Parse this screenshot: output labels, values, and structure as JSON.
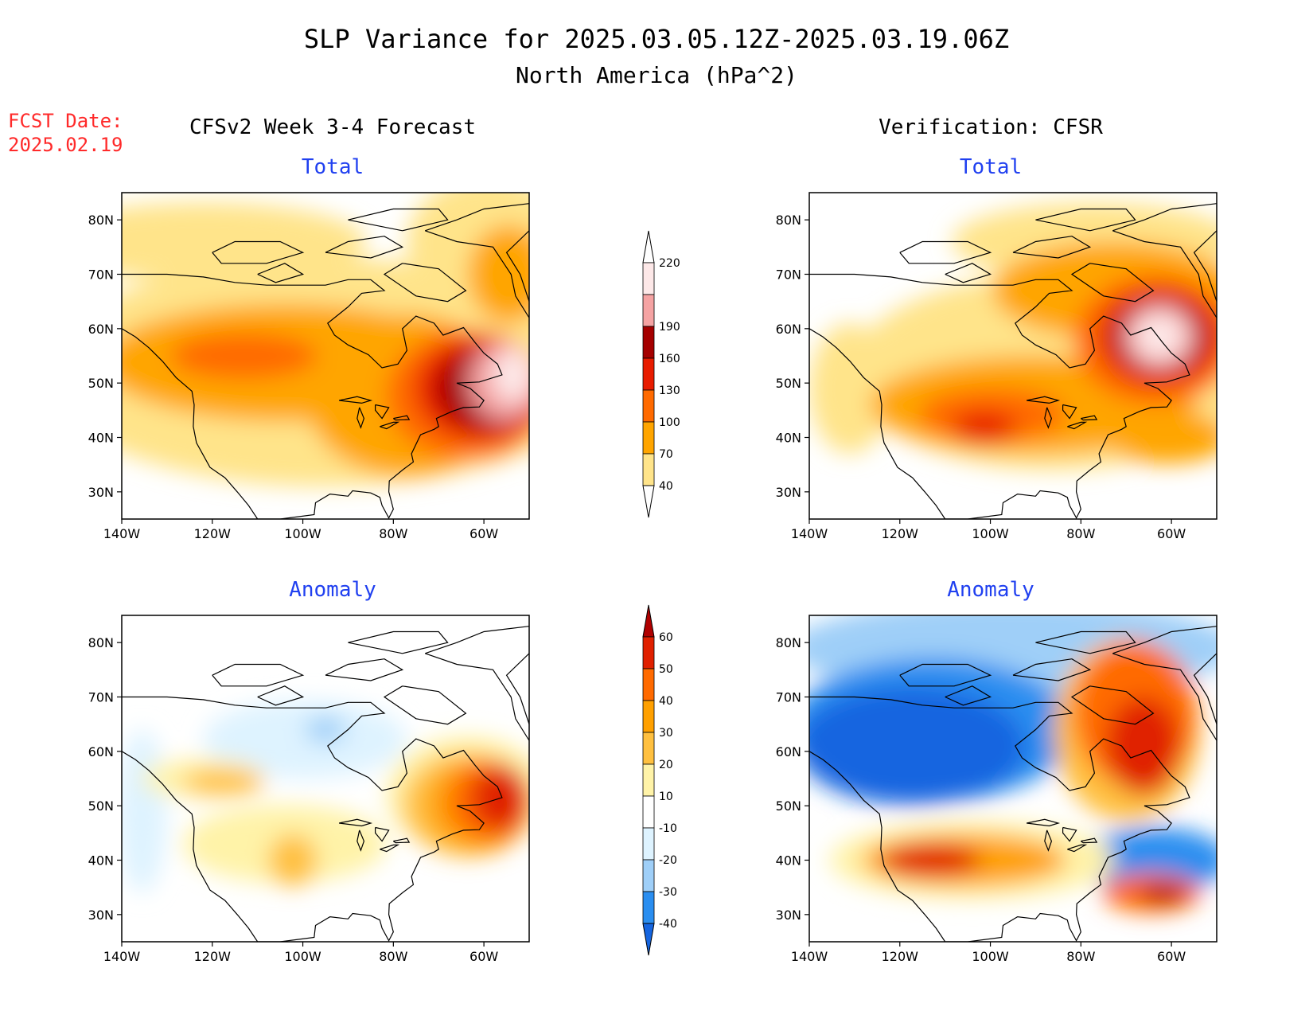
{
  "title": "SLP Variance for 2025.03.05.12Z-2025.03.19.06Z",
  "subtitle": "North America (hPa^2)",
  "fcst_label": "FCST Date:",
  "fcst_date": "2025.02.19",
  "left_header": "CFSv2 Week 3-4 Forecast",
  "right_header": "Verification: CFSR",
  "colors": {
    "title": "#000000",
    "fcst": "#ff2a2a",
    "panel_title": "#2040f0"
  },
  "panels": [
    {
      "key": "fcst_total",
      "title": "Total",
      "field": "total",
      "source": "forecast"
    },
    {
      "key": "verif_total",
      "title": "Total",
      "field": "total",
      "source": "verification"
    },
    {
      "key": "fcst_anom",
      "title": "Anomaly",
      "field": "anomaly",
      "source": "forecast"
    },
    {
      "key": "verif_anom",
      "title": "Anomaly",
      "field": "anomaly",
      "source": "verification"
    }
  ],
  "axes": {
    "lon_ticks": [
      "140W",
      "120W",
      "100W",
      "80W",
      "60W"
    ],
    "lat_ticks": [
      "80N",
      "70N",
      "60N",
      "50N",
      "40N",
      "30N"
    ]
  },
  "colorbar_total": {
    "levels": [
      "40",
      "70",
      "100",
      "130",
      "160",
      "190",
      "220"
    ],
    "colors": [
      "#ffe48a",
      "#ffa500",
      "#ff6a00",
      "#e81c00",
      "#a50000",
      "#f5a3a3",
      "#fde8e8"
    ]
  },
  "colorbar_anomaly": {
    "levels": [
      "-40",
      "-30",
      "-20",
      "-10",
      "10",
      "20",
      "30",
      "40",
      "50",
      "60"
    ],
    "colors": [
      "#1565e0",
      "#2a8ef0",
      "#9fcff8",
      "#def3ff",
      "#ffffff",
      "#fff3a8",
      "#ffc040",
      "#ffa000",
      "#ff6a00",
      "#e02000",
      "#b00000"
    ]
  }
}
